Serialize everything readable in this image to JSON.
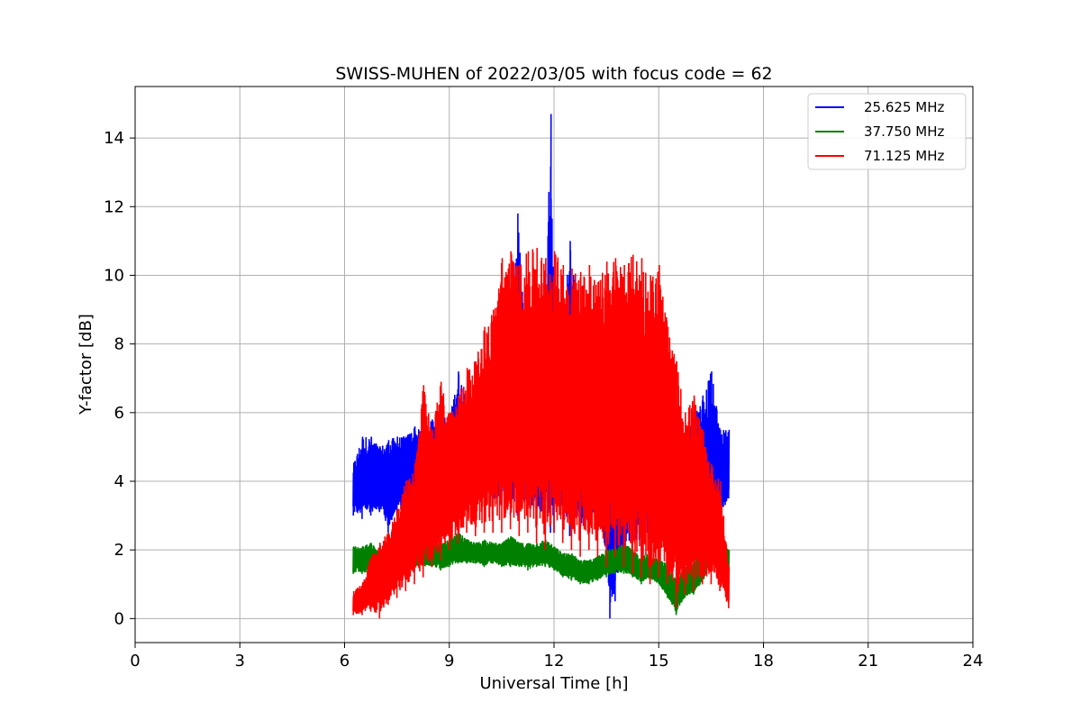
{
  "chart_data": {
    "type": "line",
    "title": "SWISS-MUHEN of 2022/03/05 with focus code = 62",
    "xlabel": "Universal Time [h]",
    "ylabel": "Y-factor [dB]",
    "xlim": [
      0,
      24
    ],
    "ylim": [
      -0.7,
      15.5
    ],
    "xticks": [
      0,
      3,
      6,
      9,
      12,
      15,
      18,
      21,
      24
    ],
    "yticks": [
      0,
      2,
      4,
      6,
      8,
      10,
      12,
      14
    ],
    "grid": true,
    "legend_position": "top-right",
    "series": [
      {
        "name": "25.625 MHz",
        "color": "#0000ff",
        "x": [
          6.25,
          6.5,
          6.75,
          7.0,
          7.25,
          7.5,
          7.75,
          8.0,
          8.25,
          8.5,
          8.75,
          9.0,
          9.25,
          9.5,
          9.75,
          10.0,
          10.25,
          10.5,
          10.75,
          10.95,
          11.25,
          11.5,
          11.75,
          11.9,
          12.0,
          12.25,
          12.45,
          12.75,
          13.0,
          13.25,
          13.5,
          13.6,
          13.75,
          14.0,
          14.25,
          14.5,
          14.75,
          15.0,
          15.25,
          15.5,
          15.75,
          16.0,
          16.25,
          16.5,
          16.75,
          17.0
        ],
        "low": [
          3.0,
          2.9,
          3.0,
          3.1,
          2.5,
          3.0,
          3.1,
          3.2,
          3.3,
          3.4,
          3.5,
          3.6,
          3.6,
          3.5,
          3.4,
          3.5,
          3.2,
          3.3,
          3.0,
          3.0,
          3.2,
          2.8,
          2.5,
          2.5,
          2.5,
          2.5,
          2.4,
          2.3,
          2.5,
          2.6,
          1.5,
          0.0,
          0.5,
          1.5,
          2.0,
          2.0,
          2.0,
          2.2,
          2.5,
          2.0,
          1.8,
          1.5,
          1.8,
          2.0,
          2.5,
          3.5
        ],
        "high": [
          4.5,
          5.3,
          5.3,
          5.0,
          5.2,
          5.3,
          5.3,
          5.6,
          5.4,
          5.8,
          5.9,
          5.8,
          7.2,
          6.5,
          5.0,
          6.0,
          7.0,
          8.0,
          9.0,
          11.8,
          7.5,
          8.0,
          9.0,
          14.7,
          9.0,
          8.5,
          11.0,
          9.0,
          8.0,
          8.0,
          7.0,
          8.0,
          6.5,
          7.5,
          7.0,
          8.0,
          6.5,
          6.5,
          6.0,
          5.0,
          5.5,
          6.0,
          6.5,
          7.2,
          5.5,
          5.5
        ]
      },
      {
        "name": "37.750 MHz",
        "color": "#008000",
        "x": [
          6.25,
          6.5,
          6.75,
          7.0,
          7.25,
          7.5,
          7.75,
          8.0,
          8.25,
          8.5,
          8.75,
          9.0,
          9.25,
          9.5,
          9.75,
          10.0,
          10.25,
          10.5,
          10.75,
          11.0,
          11.25,
          11.5,
          11.75,
          12.0,
          12.25,
          12.5,
          12.75,
          13.0,
          13.25,
          13.5,
          13.75,
          14.0,
          14.25,
          14.5,
          14.75,
          15.0,
          15.25,
          15.5,
          15.75,
          16.0,
          16.25,
          16.5,
          16.75,
          17.0
        ],
        "low": [
          1.3,
          1.3,
          1.3,
          1.2,
          1.4,
          1.4,
          1.4,
          1.5,
          1.5,
          1.5,
          1.4,
          1.5,
          1.6,
          1.6,
          1.6,
          1.5,
          1.6,
          1.5,
          1.5,
          1.5,
          1.4,
          1.5,
          1.5,
          1.4,
          1.2,
          1.1,
          1.0,
          1.0,
          1.1,
          1.2,
          1.3,
          1.3,
          1.2,
          1.0,
          1.1,
          1.0,
          0.6,
          0.1,
          0.6,
          0.7,
          1.0,
          1.6,
          1.5,
          1.3
        ],
        "high": [
          2.1,
          2.1,
          2.2,
          2.0,
          2.1,
          2.1,
          2.2,
          2.2,
          2.2,
          2.3,
          2.2,
          2.3,
          2.5,
          2.3,
          2.2,
          2.3,
          2.2,
          2.2,
          2.4,
          2.2,
          2.2,
          2.2,
          2.3,
          2.1,
          1.9,
          1.9,
          1.7,
          1.7,
          1.8,
          2.0,
          2.1,
          2.2,
          2.0,
          1.8,
          1.9,
          1.7,
          1.6,
          1.1,
          1.5,
          1.7,
          2.0,
          2.5,
          2.3,
          2.0
        ]
      },
      {
        "name": "71.125 MHz",
        "color": "#ff0000",
        "x": [
          6.25,
          6.5,
          6.75,
          7.0,
          7.25,
          7.5,
          7.75,
          8.0,
          8.25,
          8.5,
          8.75,
          9.0,
          9.25,
          9.5,
          9.75,
          10.0,
          10.25,
          10.5,
          10.75,
          11.0,
          11.25,
          11.5,
          11.75,
          12.0,
          12.25,
          12.5,
          12.75,
          13.0,
          13.25,
          13.5,
          13.75,
          14.0,
          14.25,
          14.5,
          14.75,
          15.0,
          15.25,
          15.5,
          15.75,
          16.0,
          16.25,
          16.5,
          16.75,
          17.0
        ],
        "low": [
          0.1,
          0.1,
          0.2,
          0.0,
          0.4,
          0.6,
          0.8,
          1.0,
          1.2,
          1.5,
          1.7,
          2.0,
          2.2,
          2.5,
          2.4,
          2.5,
          2.5,
          2.5,
          2.6,
          2.4,
          2.5,
          2.2,
          2.0,
          2.5,
          2.2,
          2.0,
          1.8,
          2.0,
          1.8,
          1.5,
          1.8,
          1.5,
          1.3,
          1.2,
          1.0,
          1.2,
          1.0,
          0.3,
          0.7,
          0.8,
          1.0,
          1.0,
          0.8,
          0.3
        ],
        "high": [
          0.8,
          1.0,
          1.8,
          2.2,
          2.5,
          3.2,
          4.0,
          4.5,
          6.8,
          5.5,
          6.9,
          6.0,
          6.5,
          7.3,
          7.5,
          8.5,
          9.0,
          10.5,
          10.7,
          10.3,
          10.7,
          10.8,
          10.5,
          10.7,
          10.3,
          10.2,
          10.1,
          10.3,
          9.8,
          10.4,
          10.5,
          10.3,
          10.6,
          10.5,
          10.0,
          10.3,
          8.5,
          7.5,
          6.0,
          6.5,
          5.5,
          4.5,
          4.0,
          1.5
        ]
      }
    ]
  }
}
